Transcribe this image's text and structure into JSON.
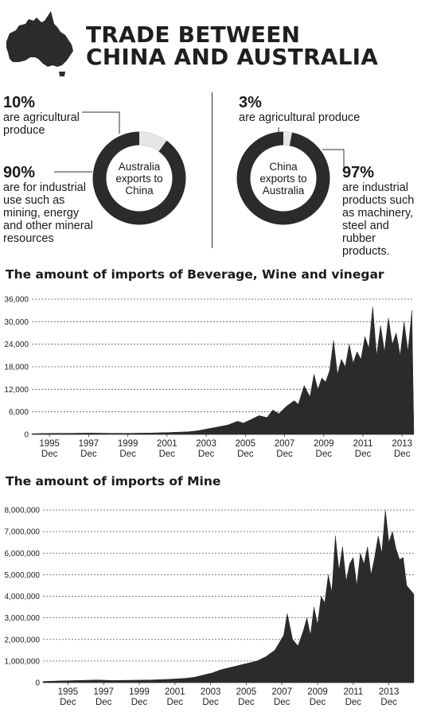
{
  "header": {
    "title_line1": "TRADE BETWEEN",
    "title_line2": "CHINA AND AUSTRALIA"
  },
  "australia_exports": {
    "center_label": "Australia exports to China",
    "agricultural": {
      "pct": "10%",
      "desc": "are agricultural produce",
      "value": 10
    },
    "industrial": {
      "pct": "90%",
      "desc": "are for industrial use such as mining, energy and other mineral resources",
      "value": 90
    }
  },
  "china_exports": {
    "center_label": "China exports to Australia",
    "agricultural": {
      "pct": "3%",
      "desc": "are agricultural produce",
      "value": 3
    },
    "industrial": {
      "pct": "97%",
      "desc": "are industrial products such as machinery, steel and rubber products.",
      "value": 97
    }
  },
  "colors": {
    "dark": "#2b2b2b",
    "light": "#e6e6e6",
    "grid": "#555555"
  },
  "chart_data": [
    {
      "type": "area",
      "title": "The amount of imports of Beverage, Wine and vinegar",
      "ylim": [
        0,
        36000
      ],
      "yticks": [
        "0",
        "6,000",
        "12,000",
        "18,000",
        "24,000",
        "30,000",
        "36,000"
      ],
      "ytick_values": [
        0,
        6000,
        12000,
        18000,
        24000,
        30000,
        36000
      ],
      "xlim": [
        1995.0,
        2014.5
      ],
      "xticks": [
        {
          "x": 1995.9,
          "year": "1995",
          "month": "Dec"
        },
        {
          "x": 1997.9,
          "year": "1997",
          "month": "Dec"
        },
        {
          "x": 1999.9,
          "year": "1999",
          "month": "Dec"
        },
        {
          "x": 2001.9,
          "year": "2001",
          "month": "Dec"
        },
        {
          "x": 2003.9,
          "year": "2003",
          "month": "Dec"
        },
        {
          "x": 2005.9,
          "year": "2005",
          "month": "Dec"
        },
        {
          "x": 2007.9,
          "year": "2007",
          "month": "Dec"
        },
        {
          "x": 2009.9,
          "year": "2009",
          "month": "Dec"
        },
        {
          "x": 2011.9,
          "year": "2011",
          "month": "Dec"
        },
        {
          "x": 2013.9,
          "year": "2013",
          "month": "Dec"
        }
      ],
      "grid": "dashed-horizontal",
      "x": [
        1995.0,
        1996.0,
        1997.0,
        1998.0,
        1999.0,
        2000.0,
        2001.0,
        2002.0,
        2003.0,
        2003.5,
        2004.0,
        2004.5,
        2005.0,
        2005.5,
        2005.8,
        2006.2,
        2006.6,
        2007.0,
        2007.3,
        2007.6,
        2008.0,
        2008.4,
        2008.6,
        2008.9,
        2009.2,
        2009.4,
        2009.6,
        2009.8,
        2010.0,
        2010.2,
        2010.4,
        2010.6,
        2010.8,
        2011.0,
        2011.2,
        2011.4,
        2011.6,
        2011.8,
        2012.0,
        2012.2,
        2012.4,
        2012.6,
        2012.8,
        2013.0,
        2013.2,
        2013.4,
        2013.6,
        2013.8,
        2014.0,
        2014.2,
        2014.4,
        2014.5
      ],
      "y": [
        200,
        300,
        300,
        350,
        300,
        300,
        350,
        500,
        700,
        1000,
        1500,
        2000,
        2500,
        3500,
        3000,
        4000,
        5000,
        4500,
        6500,
        5500,
        7500,
        9000,
        8000,
        13000,
        10000,
        16000,
        12000,
        15000,
        14000,
        17000,
        25000,
        16000,
        20000,
        18000,
        24000,
        19000,
        22000,
        20000,
        26000,
        23000,
        34000,
        21000,
        29000,
        22000,
        31000,
        24000,
        27000,
        21000,
        30000,
        22000,
        33000,
        0
      ]
    },
    {
      "type": "area",
      "title": "The amount of imports of Mine",
      "ylim": [
        0,
        8000000
      ],
      "yticks": [
        "0",
        "1,000,000",
        "2,000,000",
        "3,000,000",
        "4,000,000",
        "5,000,000",
        "6,000,000",
        "7,000,000",
        "8,000,000"
      ],
      "ytick_values": [
        0,
        1000000,
        2000000,
        3000000,
        4000000,
        5000000,
        6000000,
        7000000,
        8000000
      ],
      "xlim": [
        1994.0,
        2014.8
      ],
      "xticks": [
        {
          "x": 1995.4,
          "year": "1995",
          "month": "Dec"
        },
        {
          "x": 1997.4,
          "year": "1997",
          "month": "Dec"
        },
        {
          "x": 1999.4,
          "year": "1999",
          "month": "Dec"
        },
        {
          "x": 2001.4,
          "year": "2001",
          "month": "Dec"
        },
        {
          "x": 2003.4,
          "year": "2003",
          "month": "Dec"
        },
        {
          "x": 2005.4,
          "year": "2005",
          "month": "Dec"
        },
        {
          "x": 2007.4,
          "year": "2007",
          "month": "Dec"
        },
        {
          "x": 2009.4,
          "year": "2009",
          "month": "Dec"
        },
        {
          "x": 2011.4,
          "year": "2011",
          "month": "Dec"
        },
        {
          "x": 2013.4,
          "year": "2013",
          "month": "Dec"
        }
      ],
      "grid": "dashed-horizontal",
      "x": [
        1994.0,
        1995.0,
        1996.0,
        1997.0,
        1998.0,
        1999.0,
        2000.0,
        2001.0,
        2002.0,
        2002.5,
        2003.0,
        2003.5,
        2004.0,
        2004.5,
        2005.0,
        2005.5,
        2006.0,
        2006.5,
        2007.0,
        2007.5,
        2007.7,
        2008.0,
        2008.3,
        2008.6,
        2008.8,
        2009.0,
        2009.2,
        2009.4,
        2009.6,
        2009.8,
        2010.0,
        2010.2,
        2010.4,
        2010.6,
        2010.8,
        2011.0,
        2011.2,
        2011.4,
        2011.6,
        2011.8,
        2012.0,
        2012.2,
        2012.4,
        2012.6,
        2012.8,
        2013.0,
        2013.2,
        2013.4,
        2013.6,
        2013.8,
        2014.0,
        2014.2,
        2014.4,
        2014.6,
        2014.8
      ],
      "y": [
        50000,
        80000,
        100000,
        120000,
        100000,
        110000,
        120000,
        150000,
        200000,
        250000,
        350000,
        450000,
        600000,
        700000,
        800000,
        900000,
        1000000,
        1200000,
        1500000,
        2200000,
        3200000,
        2000000,
        1700000,
        2400000,
        3000000,
        2200000,
        3500000,
        2700000,
        4000000,
        3700000,
        5000000,
        4200000,
        6800000,
        5200000,
        6300000,
        4700000,
        5500000,
        5800000,
        4500000,
        6000000,
        5500000,
        6300000,
        5000000,
        5800000,
        6800000,
        6000000,
        8000000,
        6500000,
        7000000,
        6200000,
        5700000,
        5800000,
        4500000,
        4300000,
        4100000
      ]
    }
  ]
}
